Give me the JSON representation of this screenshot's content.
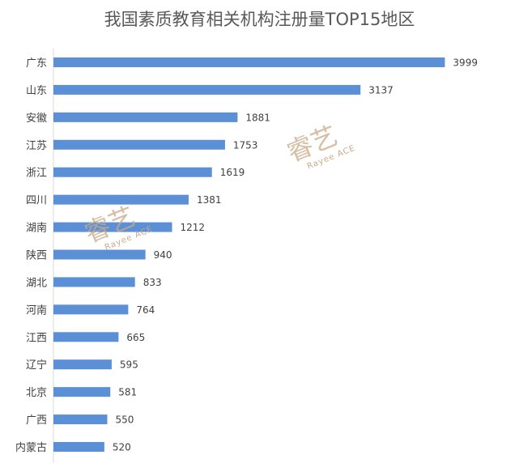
{
  "title": "我国素质教育相关机构注册量TOP15地区",
  "watermark": {
    "glyphs": "睿艺",
    "text": "Rayee ACE",
    "color": "#c8aa88"
  },
  "chart_data": {
    "type": "bar",
    "orientation": "horizontal",
    "title": "我国素质教育相关机构注册量TOP15地区",
    "categories": [
      "广东",
      "山东",
      "安徽",
      "江苏",
      "浙江",
      "四川",
      "湖南",
      "陕西",
      "湖北",
      "河南",
      "江西",
      "辽宁",
      "北京",
      "广西",
      "内蒙古"
    ],
    "values": [
      3999,
      3137,
      1881,
      1753,
      1619,
      1381,
      1212,
      940,
      833,
      764,
      665,
      595,
      581,
      550,
      520
    ],
    "bar_color": "#5b8fd6",
    "xlim": [
      0,
      4500
    ],
    "grid": false,
    "data_labels": true
  }
}
